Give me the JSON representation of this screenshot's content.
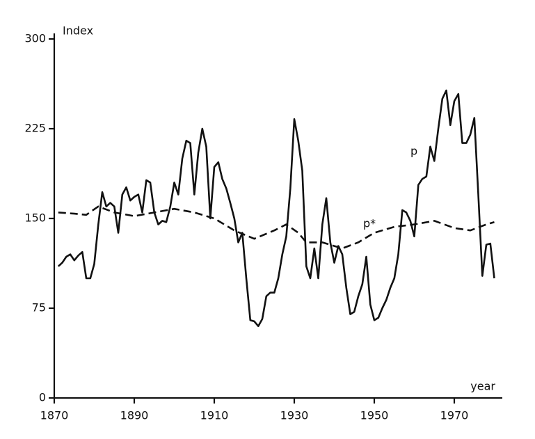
{
  "chart_data": {
    "type": "line",
    "y_label": "Index",
    "x_label": "year",
    "xlim": [
      1870,
      1982
    ],
    "ylim": [
      0,
      300
    ],
    "xticks": [
      1870,
      1890,
      1910,
      1930,
      1950,
      1970
    ],
    "yticks": [
      0,
      75,
      150,
      225,
      300
    ],
    "grid": false,
    "series": [
      {
        "name": "p",
        "color": "#111111",
        "dashed": false,
        "x": [
          1871,
          1872,
          1873,
          1874,
          1875,
          1876,
          1877,
          1878,
          1879,
          1880,
          1881,
          1882,
          1883,
          1884,
          1885,
          1886,
          1887,
          1888,
          1889,
          1890,
          1891,
          1892,
          1893,
          1894,
          1895,
          1896,
          1897,
          1898,
          1899,
          1900,
          1901,
          1902,
          1903,
          1904,
          1905,
          1906,
          1907,
          1908,
          1909,
          1910,
          1911,
          1912,
          1913,
          1914,
          1915,
          1916,
          1917,
          1918,
          1919,
          1920,
          1921,
          1922,
          1923,
          1924,
          1925,
          1926,
          1927,
          1928,
          1929,
          1930,
          1931,
          1932,
          1933,
          1934,
          1935,
          1936,
          1937,
          1938,
          1939,
          1940,
          1941,
          1942,
          1943,
          1944,
          1945,
          1946,
          1947,
          1948,
          1949,
          1950,
          1951,
          1952,
          1953,
          1954,
          1955,
          1956,
          1957,
          1958,
          1959,
          1960,
          1961,
          1962,
          1963,
          1964,
          1965,
          1966,
          1967,
          1968,
          1969,
          1970,
          1971,
          1972,
          1973,
          1974,
          1975,
          1976,
          1977,
          1978,
          1979,
          1980
        ],
        "values": [
          110,
          113,
          118,
          120,
          115,
          119,
          122,
          100,
          100,
          112,
          145,
          172,
          160,
          163,
          160,
          138,
          170,
          176,
          165,
          168,
          170,
          155,
          182,
          180,
          155,
          145,
          148,
          147,
          160,
          180,
          170,
          200,
          215,
          213,
          170,
          205,
          225,
          210,
          150,
          193,
          197,
          183,
          175,
          163,
          150,
          130,
          138,
          100,
          65,
          64,
          60,
          66,
          85,
          88,
          88,
          100,
          120,
          135,
          175,
          233,
          215,
          190,
          110,
          100,
          125,
          100,
          145,
          167,
          130,
          113,
          127,
          120,
          92,
          70,
          72,
          85,
          95,
          118,
          78,
          65,
          67,
          75,
          82,
          92,
          100,
          120,
          157,
          155,
          148,
          135,
          178,
          183,
          185,
          210,
          198,
          225,
          250,
          257,
          228,
          248,
          254,
          213,
          213,
          220,
          234,
          170,
          102,
          128,
          129,
          100
        ]
      },
      {
        "name": "p*",
        "color": "#111111",
        "dashed": true,
        "x": [
          1871,
          1875,
          1878,
          1881,
          1885,
          1890,
          1895,
          1900,
          1905,
          1910,
          1915,
          1920,
          1925,
          1928,
          1931,
          1933,
          1937,
          1940,
          1942,
          1946,
          1950,
          1955,
          1960,
          1965,
          1970,
          1974,
          1978,
          1980
        ],
        "values": [
          155,
          154,
          153,
          160,
          155,
          152,
          155,
          158,
          155,
          150,
          140,
          133,
          140,
          145,
          138,
          130,
          130,
          127,
          125,
          130,
          138,
          143,
          145,
          148,
          142,
          140,
          145,
          147
        ]
      }
    ]
  }
}
